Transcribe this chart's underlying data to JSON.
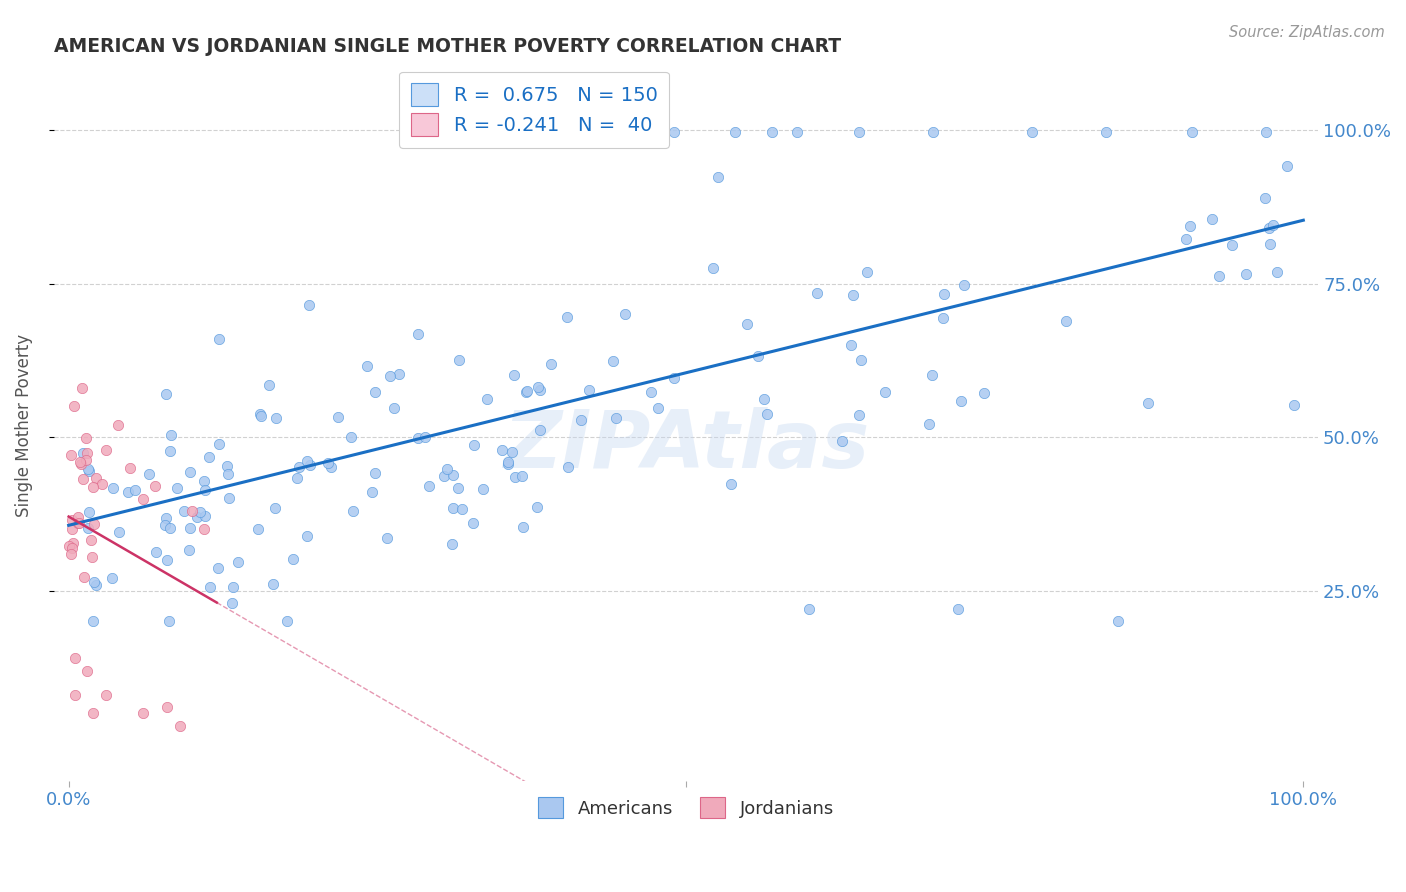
{
  "title": "AMERICAN VS JORDANIAN SINGLE MOTHER POVERTY CORRELATION CHART",
  "source": "Source: ZipAtlas.com",
  "ylabel": "Single Mother Poverty",
  "american_color": "#aac8f0",
  "american_edge_color": "#5599dd",
  "american_line_color": "#1a6fc4",
  "jordanian_color": "#f0aabb",
  "jordanian_edge_color": "#dd6688",
  "jordanian_line_color": "#cc3366",
  "legend_box_american": "#cce0f8",
  "legend_box_jordanian": "#f8c8d8",
  "watermark": "ZIPAtlas",
  "american_R": 0.675,
  "american_N": 150,
  "jordanian_R": -0.241,
  "jordanian_N": 40,
  "title_color": "#333333",
  "axis_label_color": "#555555",
  "tick_color": "#4488cc",
  "grid_color": "#cccccc",
  "background_color": "#ffffff",
  "ytick_positions": [
    0.25,
    0.5,
    0.75,
    1.0
  ],
  "ytick_labels": [
    "25.0%",
    "50.0%",
    "75.0%",
    "100.0%"
  ]
}
